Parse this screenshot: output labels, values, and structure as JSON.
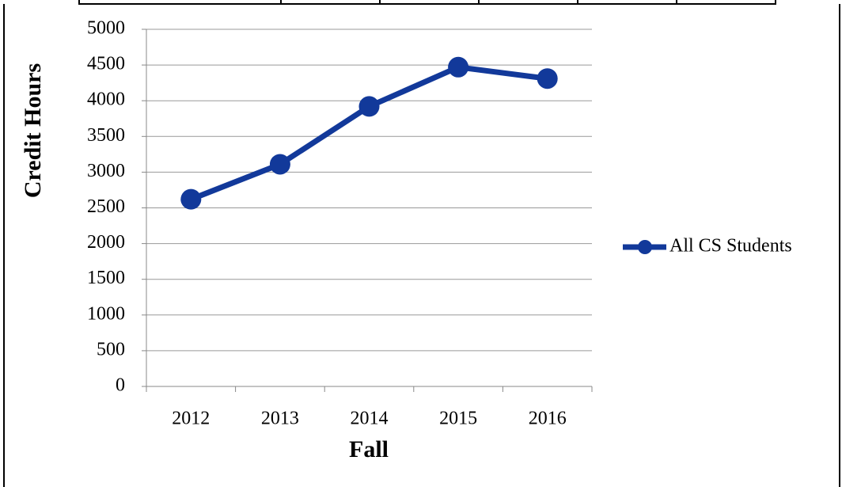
{
  "chart_data": {
    "type": "line",
    "x_label": "Fall",
    "y_label": "Credit Hours",
    "categories": [
      "2012",
      "2013",
      "2014",
      "2015",
      "2016"
    ],
    "series": [
      {
        "name": "All CS Students",
        "color": "#12399a",
        "values": [
          2620,
          3110,
          3920,
          4470,
          4310
        ]
      }
    ],
    "ylim": [
      0,
      5000
    ],
    "yticks": [
      0,
      500,
      1000,
      1500,
      2000,
      2500,
      3000,
      3500,
      4000,
      4500,
      5000
    ],
    "grid": true,
    "legend": "right"
  }
}
